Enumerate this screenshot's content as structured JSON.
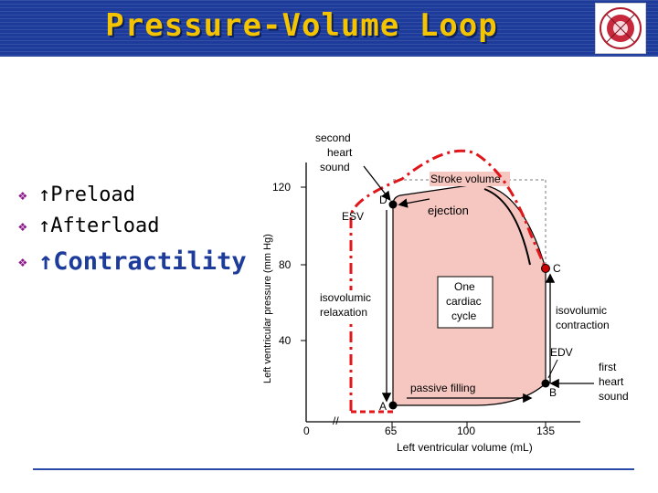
{
  "title": "Pressure-Volume Loop",
  "bullets": [
    "↑Preload",
    "↑Afterload",
    "↑Contractility"
  ],
  "diagram": {
    "y_axis_label": "Left ventricular pressure (mm Hg)",
    "x_axis_label": "Left ventricular volume (mL)",
    "y_ticks": [
      "120",
      "80",
      "40"
    ],
    "x_ticks": [
      "0",
      "65",
      "100",
      "135"
    ],
    "axis_break": "//",
    "labels": {
      "second_heart_sound": [
        "second",
        "heart",
        "sound"
      ],
      "first_heart_sound": [
        "first",
        "heart",
        "sound"
      ],
      "stroke_volume": "Stroke volume",
      "ejection": "ejection",
      "esv": "ESV",
      "edv": "EDV",
      "isovolumic_relaxation": [
        "isovolumic",
        "relaxation"
      ],
      "isovolumic_contraction": [
        "isovolumic",
        "contraction"
      ],
      "passive_filling": "passive filling",
      "cycle_box": [
        "One",
        "cardiac",
        "cycle"
      ],
      "point_a": "A",
      "point_b": "B",
      "point_c": "C",
      "point_d": "D"
    },
    "colors": {
      "loop_fill": "#f6c6c0",
      "dashed_loop": "#e0161b",
      "axis": "#000000"
    }
  }
}
